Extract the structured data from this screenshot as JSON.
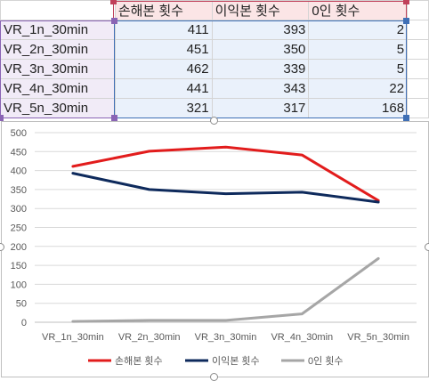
{
  "sheet": {
    "headers": [
      "손해본 횟수",
      "이익본 횟수",
      "0인 횟수"
    ],
    "rows": [
      {
        "label": "VR_1n_30min",
        "values": [
          "411",
          "393",
          "2"
        ]
      },
      {
        "label": "VR_2n_30min",
        "values": [
          "451",
          "350",
          "5"
        ]
      },
      {
        "label": "VR_3n_30min",
        "values": [
          "462",
          "339",
          "5"
        ]
      },
      {
        "label": "VR_4n_30min",
        "values": [
          "441",
          "343",
          "22"
        ]
      },
      {
        "label": "VR_5n_30min",
        "values": [
          "321",
          "317",
          "168"
        ]
      }
    ]
  },
  "chart_data": {
    "type": "line",
    "categories": [
      "VR_1n_30min",
      "VR_2n_30min",
      "VR_3n_30min",
      "VR_4n_30min",
      "VR_5n_30min"
    ],
    "series": [
      {
        "name": "손해본 횟수",
        "values": [
          411,
          451,
          462,
          441,
          321
        ],
        "color": "#e21c1c"
      },
      {
        "name": "이익본 횟수",
        "values": [
          393,
          350,
          339,
          343,
          317
        ],
        "color": "#0e2a5c"
      },
      {
        "name": "0인 횟수",
        "values": [
          2,
          5,
          5,
          22,
          168
        ],
        "color": "#a6a6a6"
      }
    ],
    "yticks": [
      "0",
      "50",
      "100",
      "150",
      "200",
      "250",
      "300",
      "350",
      "400",
      "450",
      "500"
    ],
    "ylim": [
      0,
      500
    ],
    "grid": true,
    "legend": "bottom",
    "title": "",
    "xlabel": "",
    "ylabel": ""
  }
}
